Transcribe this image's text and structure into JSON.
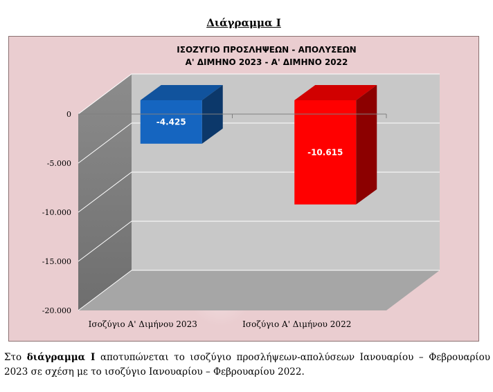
{
  "heading": "Διάγραμμα Ι",
  "chart_data": {
    "type": "bar",
    "title_line1": "ΙΣΟΖΥΓΙΟ  ΠΡΟΣΛΗΨΕΩΝ  -  ΑΠΟΛΥΣΕΩΝ",
    "title_line2": "Α' ΔΙΜΗΝΟ 2023  -  Α' ΔΙΜΗΝΟ 2022",
    "categories": [
      "Ισοζύγιο Α' Διμήνου  2023",
      "Ισοζύγιο Α' Διμήνου 2022"
    ],
    "values": [
      -4425,
      -10615
    ],
    "data_labels": [
      "-4.425",
      "-10.615"
    ],
    "colors": [
      "#1565c0",
      "#ff0000"
    ],
    "yticks": [
      0,
      -5000,
      -10000,
      -15000,
      -20000
    ],
    "ytick_labels": [
      "0",
      "-5.000",
      "-10.000",
      "-15.000",
      "-20.000"
    ],
    "ylim": [
      -20000,
      0
    ],
    "grid": true,
    "legend": "none"
  },
  "caption": {
    "pre": "Στο ",
    "bold": "διάγραμμα Ι",
    "post": " αποτυπώνεται το ισοζύγιο προσλήψεων-απολύσεων Ιανουαρίου – Φεβρουαρίου 2023  σε σχέση με το ισοζύγιο Ιανουαρίου – Φεβρουαρίου 2022."
  }
}
